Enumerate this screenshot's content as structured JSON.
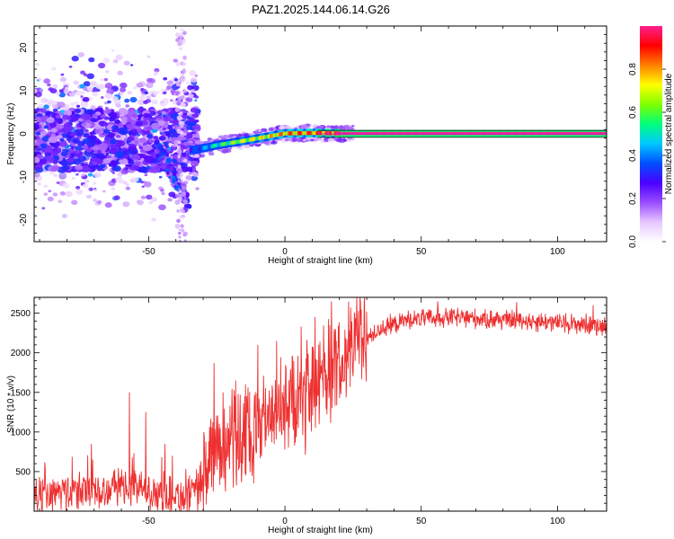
{
  "title": "PAZ1.2025.144.06.14.G26",
  "chart_data": [
    {
      "type": "heatmap",
      "name": "spectrogram",
      "xlabel": "Height of straight line (km)",
      "ylabel": "Frequency (Hz)",
      "xlim": [
        -92,
        118
      ],
      "ylim": [
        -25,
        25
      ],
      "xticks": [
        -50,
        0,
        50,
        100
      ],
      "yticks": [
        -20,
        -10,
        0,
        10,
        20
      ],
      "colorbar": {
        "label": "Normalized spectral amplitude",
        "range": [
          0,
          1
        ],
        "ticks": [
          "0.0",
          "0.2",
          "0.4",
          "0.6",
          "0.8"
        ],
        "colors": [
          "#ffffff",
          "#e6c6ff",
          "#9a4cff",
          "#4a00ff",
          "#0050ff",
          "#00c8ff",
          "#00ff7f",
          "#7fff00",
          "#ffff00",
          "#ff8000",
          "#ff0000",
          "#ff1f8e"
        ]
      },
      "reference_lines": [
        {
          "y": 0.8,
          "color": "#000000"
        },
        {
          "y": 0.0,
          "color": "#cc00cc"
        },
        {
          "y": -0.8,
          "color": "#000000"
        }
      ],
      "carrier_track": [
        {
          "x": -33,
          "f": -3.7,
          "amp": 0.35
        },
        {
          "x": -25,
          "f": -2.6,
          "amp": 0.55
        },
        {
          "x": -17,
          "f": -1.8,
          "amp": 0.7
        },
        {
          "x": -8,
          "f": -0.8,
          "amp": 0.75
        },
        {
          "x": 0,
          "f": 0.1,
          "amp": 0.85
        },
        {
          "x": 10,
          "f": 0.2,
          "amp": 0.9
        },
        {
          "x": 20,
          "f": 0.1,
          "amp": 1.0
        },
        {
          "x": 118,
          "f": 0.1,
          "amp": 1.0
        }
      ]
    },
    {
      "type": "line",
      "name": "snr",
      "xlabel": "Height of straight line (km)",
      "ylabel": "SNR (10 * v/v)",
      "xlim": [
        -92,
        118
      ],
      "ylim": [
        0,
        2700
      ],
      "xticks": [
        -50,
        0,
        50,
        100
      ],
      "yticks": [
        500,
        1000,
        1500,
        2000,
        2500
      ],
      "color": "#ee3030",
      "trend": [
        {
          "x": -92,
          "y": 180
        },
        {
          "x": -75,
          "y": 250
        },
        {
          "x": -60,
          "y": 300
        },
        {
          "x": -45,
          "y": 230
        },
        {
          "x": -35,
          "y": 150
        },
        {
          "x": -30,
          "y": 300
        },
        {
          "x": -25,
          "y": 800
        },
        {
          "x": -15,
          "y": 900
        },
        {
          "x": -5,
          "y": 1200
        },
        {
          "x": 5,
          "y": 1350
        },
        {
          "x": 15,
          "y": 1700
        },
        {
          "x": 25,
          "y": 2050
        },
        {
          "x": 35,
          "y": 2300
        },
        {
          "x": 45,
          "y": 2420
        },
        {
          "x": 60,
          "y": 2450
        },
        {
          "x": 80,
          "y": 2420
        },
        {
          "x": 100,
          "y": 2380
        },
        {
          "x": 118,
          "y": 2340
        }
      ],
      "spikes": [
        {
          "x": -88,
          "y": 550
        },
        {
          "x": -71,
          "y": 850
        },
        {
          "x": -57,
          "y": 1500
        },
        {
          "x": -51,
          "y": 1250
        },
        {
          "x": -44,
          "y": 850
        },
        {
          "x": -35,
          "y": 450
        },
        {
          "x": -26,
          "y": 1870
        },
        {
          "x": -18,
          "y": 1650
        },
        {
          "x": -10,
          "y": 2100
        },
        {
          "x": -3,
          "y": 2150
        },
        {
          "x": 6,
          "y": 2330
        },
        {
          "x": 11,
          "y": 2450
        },
        {
          "x": 17,
          "y": 2650
        },
        {
          "x": 30,
          "y": 2520
        },
        {
          "x": 56,
          "y": 2650
        },
        {
          "x": 85,
          "y": 2640
        },
        {
          "x": 113,
          "y": 2600
        }
      ]
    }
  ]
}
